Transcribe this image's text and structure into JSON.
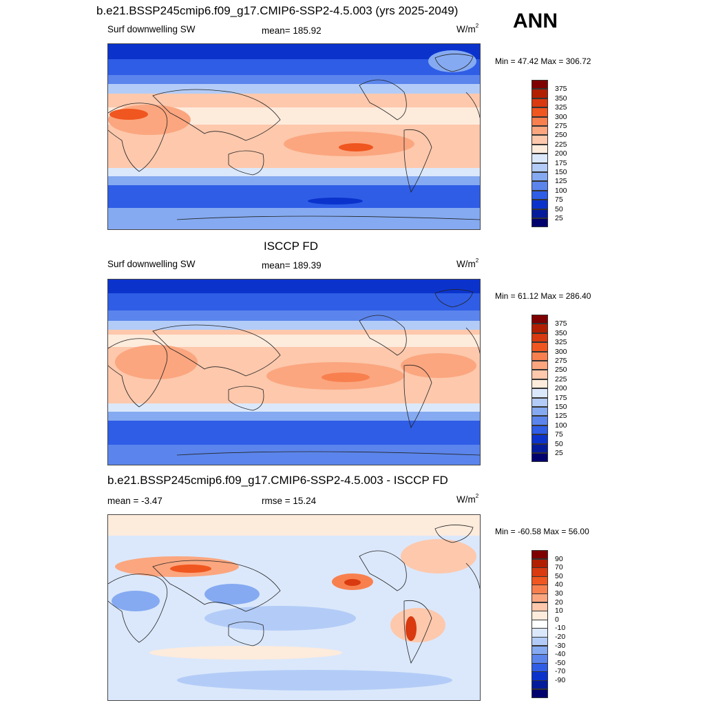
{
  "main_title": "b.e21.BSSP245cmip6.f09_g17.CMIP6-SSP2-4.5.003 (yrs 2025-2049)",
  "season": "ANN",
  "panels": [
    {
      "left_label": "Surf downwelling SW",
      "center_label": "mean= 185.92",
      "units_base": "W/m",
      "units_exp": "2",
      "minmax": "Min =  47.42 Max = 306.72",
      "colorbar_ticks": [
        "375",
        "350",
        "325",
        "300",
        "275",
        "250",
        "225",
        "200",
        "175",
        "150",
        "125",
        "100",
        "75",
        "50",
        "25"
      ]
    },
    {
      "title": "ISCCP FD",
      "left_label": "Surf downwelling SW",
      "center_label": "mean= 189.39",
      "units_base": "W/m",
      "units_exp": "2",
      "minmax": "Min =  61.12 Max = 286.40",
      "colorbar_ticks": [
        "375",
        "350",
        "325",
        "300",
        "275",
        "250",
        "225",
        "200",
        "175",
        "150",
        "125",
        "100",
        "75",
        "50",
        "25"
      ]
    },
    {
      "title": "b.e21.BSSP245cmip6.f09_g17.CMIP6-SSP2-4.5.003 - ISCCP FD",
      "left_label": "mean =  -3.47",
      "center_label": "rmse =  15.24",
      "units_base": "W/m",
      "units_exp": "2",
      "minmax": "Min = -60.58 Max =  56.00",
      "colorbar_ticks": [
        "90",
        "70",
        "50",
        "40",
        "30",
        "20",
        "10",
        "0",
        "-10",
        "-20",
        "-30",
        "-40",
        "-50",
        "-70",
        "-90"
      ]
    }
  ],
  "colors": {
    "abs_scale": [
      "#7f0000",
      "#b21f00",
      "#d93a0f",
      "#f0561f",
      "#f8804f",
      "#fba67f",
      "#fdc8ac",
      "#fdebdc",
      "#dbe8fb",
      "#b3ccf7",
      "#85aaf1",
      "#5b85ec",
      "#2f5de6",
      "#0b33cc",
      "#041c9c",
      "#02026e"
    ],
    "diff_scale": [
      "#7f0000",
      "#b21f00",
      "#d93a0f",
      "#f0561f",
      "#f8804f",
      "#fba67f",
      "#fdc8ac",
      "#fdebdc",
      "#ffffff",
      "#dbe8fb",
      "#b3ccf7",
      "#85aaf1",
      "#5b85ec",
      "#2f5de6",
      "#0b33cc",
      "#041c9c",
      "#02026e"
    ]
  }
}
